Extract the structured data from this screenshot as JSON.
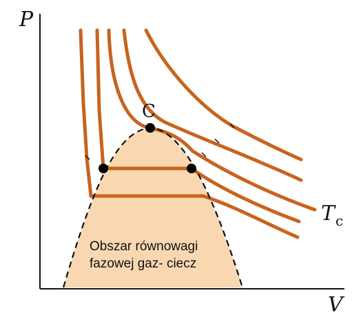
{
  "axes": {
    "y_label": "P",
    "x_label": "V"
  },
  "critical_point": {
    "label": "C"
  },
  "critical_isotherm": {
    "label_main": "T",
    "label_sub": "c"
  },
  "region": {
    "line1": "Obszar równowagi",
    "line2": "fazowej gaz- ciecz"
  },
  "colors": {
    "isotherm": "#c8641e",
    "region_fill": "#f9d7b0",
    "dashed_curve": "#111111",
    "points": "#000000"
  }
}
